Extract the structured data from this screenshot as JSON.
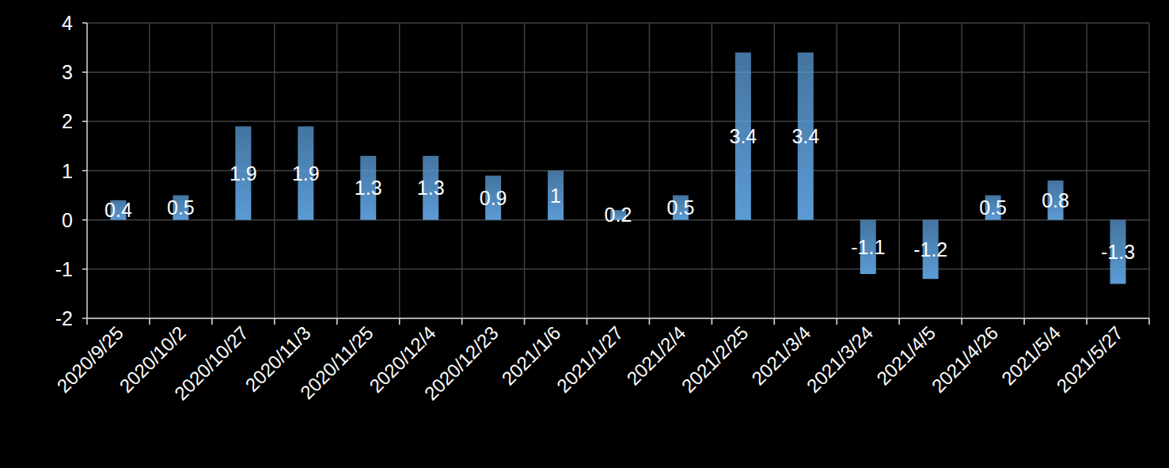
{
  "chart_data": {
    "type": "bar",
    "categories": [
      "2020/9/25",
      "2020/10/2",
      "2020/10/27",
      "2020/11/3",
      "2020/11/25",
      "2020/12/4",
      "2020/12/23",
      "2021/1/6",
      "2021/1/27",
      "2021/2/4",
      "2021/2/25",
      "2021/3/4",
      "2021/3/24",
      "2021/4/5",
      "2021/4/26",
      "2021/5/4",
      "2021/5/27"
    ],
    "values": [
      0.4,
      0.5,
      1.9,
      1.9,
      1.3,
      1.3,
      0.9,
      1,
      0.2,
      0.5,
      3.4,
      3.4,
      -1.1,
      -1.2,
      0.5,
      0.8,
      -1.3
    ],
    "color": "#5b9bd5",
    "ylim": [
      -2,
      4
    ],
    "yticks": [
      -2,
      -1,
      0,
      1,
      2,
      3,
      4
    ],
    "grid": true,
    "data_labels": true
  }
}
